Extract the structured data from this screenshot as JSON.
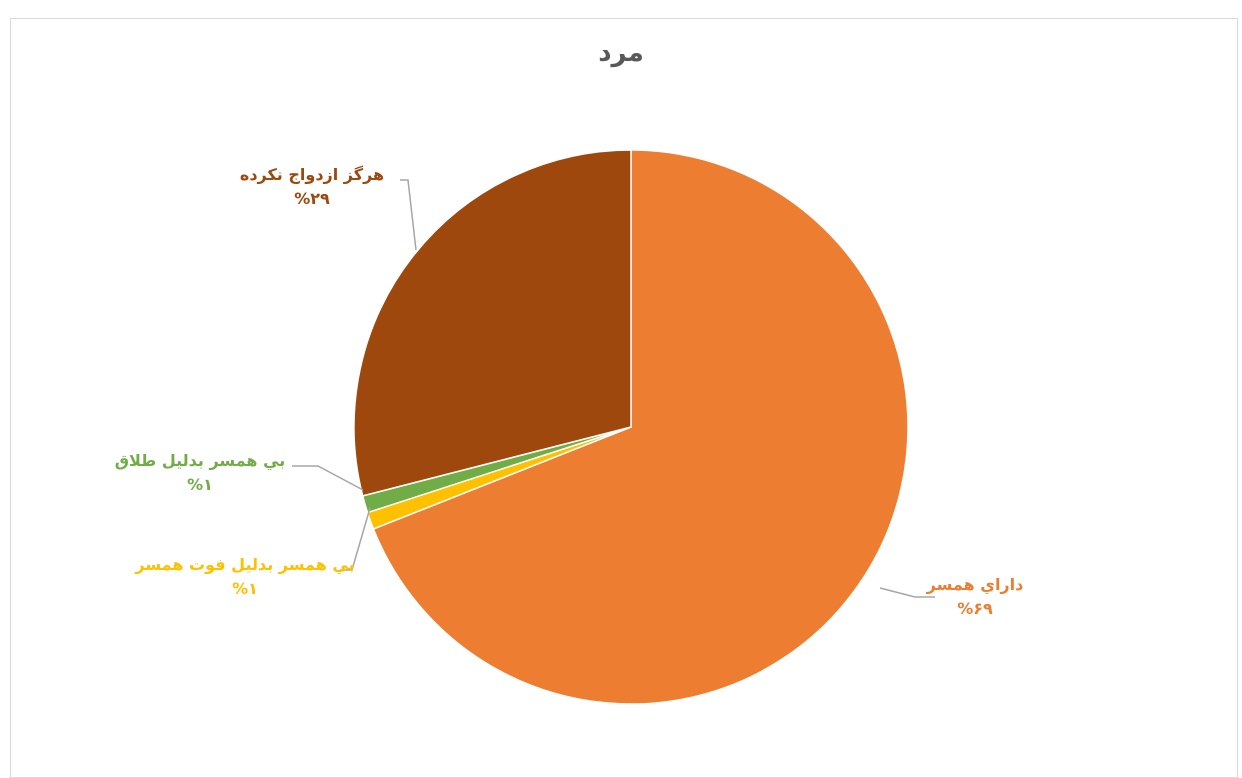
{
  "header_strip": {
    "text": ""
  },
  "chart_data": {
    "type": "pie",
    "title": "مرد",
    "slices": [
      {
        "label": "داراي همسر",
        "value": 69,
        "value_text": "%۶۹",
        "color": "#ED7D31"
      },
      {
        "label": "بي همسر بدليل فوت همسر",
        "value": 1,
        "value_text": "%۱",
        "color": "#FFC000"
      },
      {
        "label": "بي همسر بدليل طلاق",
        "value": 1,
        "value_text": "%۱",
        "color": "#70AD47"
      },
      {
        "label": "هرگز ازدواج نكرده",
        "value": 29,
        "value_text": "%۲۹",
        "color": "#9E480E"
      }
    ],
    "start_angle_deg": 0,
    "direction": "clockwise",
    "legend": "none",
    "data_labels": "outside-with-leader-lines"
  }
}
